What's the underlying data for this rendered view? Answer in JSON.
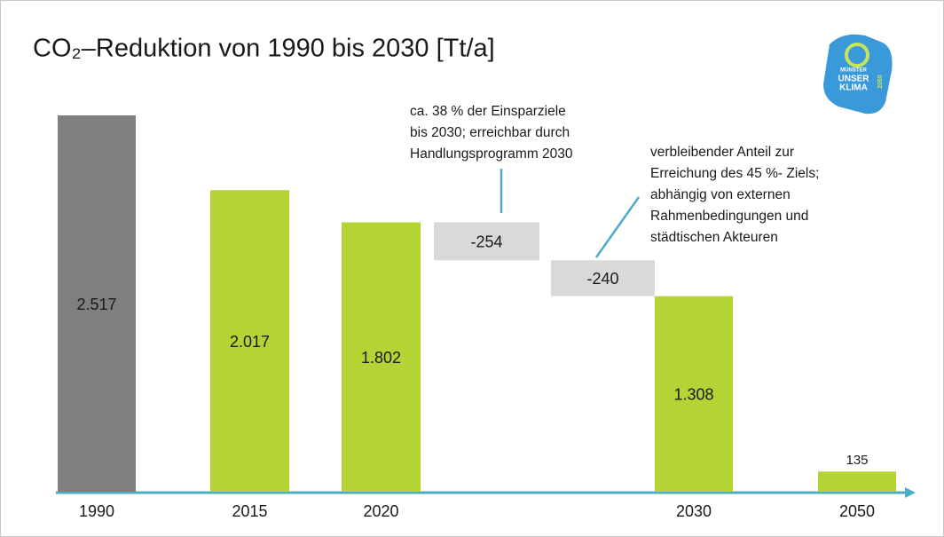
{
  "chart_data": {
    "type": "waterfall",
    "title": "CO₂–Reduktion von 1990 bis 2030 [Tt/a]",
    "categories": [
      "1990",
      "2015",
      "2020",
      null,
      null,
      "2030",
      "2050"
    ],
    "values": [
      2517,
      2017,
      1802,
      -254,
      -240,
      1308,
      135
    ],
    "value_labels": [
      "2.517",
      "2.017",
      "1.802",
      "-254",
      "-240",
      "1.308",
      "135"
    ],
    "colors": [
      "#7f7f7f",
      "#b4d334",
      "#b4d334",
      "#d9d9d9",
      "#d9d9d9",
      "#b4d334",
      "#b4d334"
    ],
    "annotations": [
      [
        "ca. 38 % der Einsparziele",
        "bis 2030; erreichbar durch",
        "Handlungsprogramm 2030"
      ],
      [
        "verbleibender Anteil zur",
        "Erreichung des 45 %- Ziels;",
        "abhängig von externen",
        "Rahmenbedingungen und",
        "städtischen Akteuren"
      ]
    ],
    "logo": [
      "MÜNSTER",
      "UNSER",
      "KLIMA",
      "2050"
    ]
  }
}
